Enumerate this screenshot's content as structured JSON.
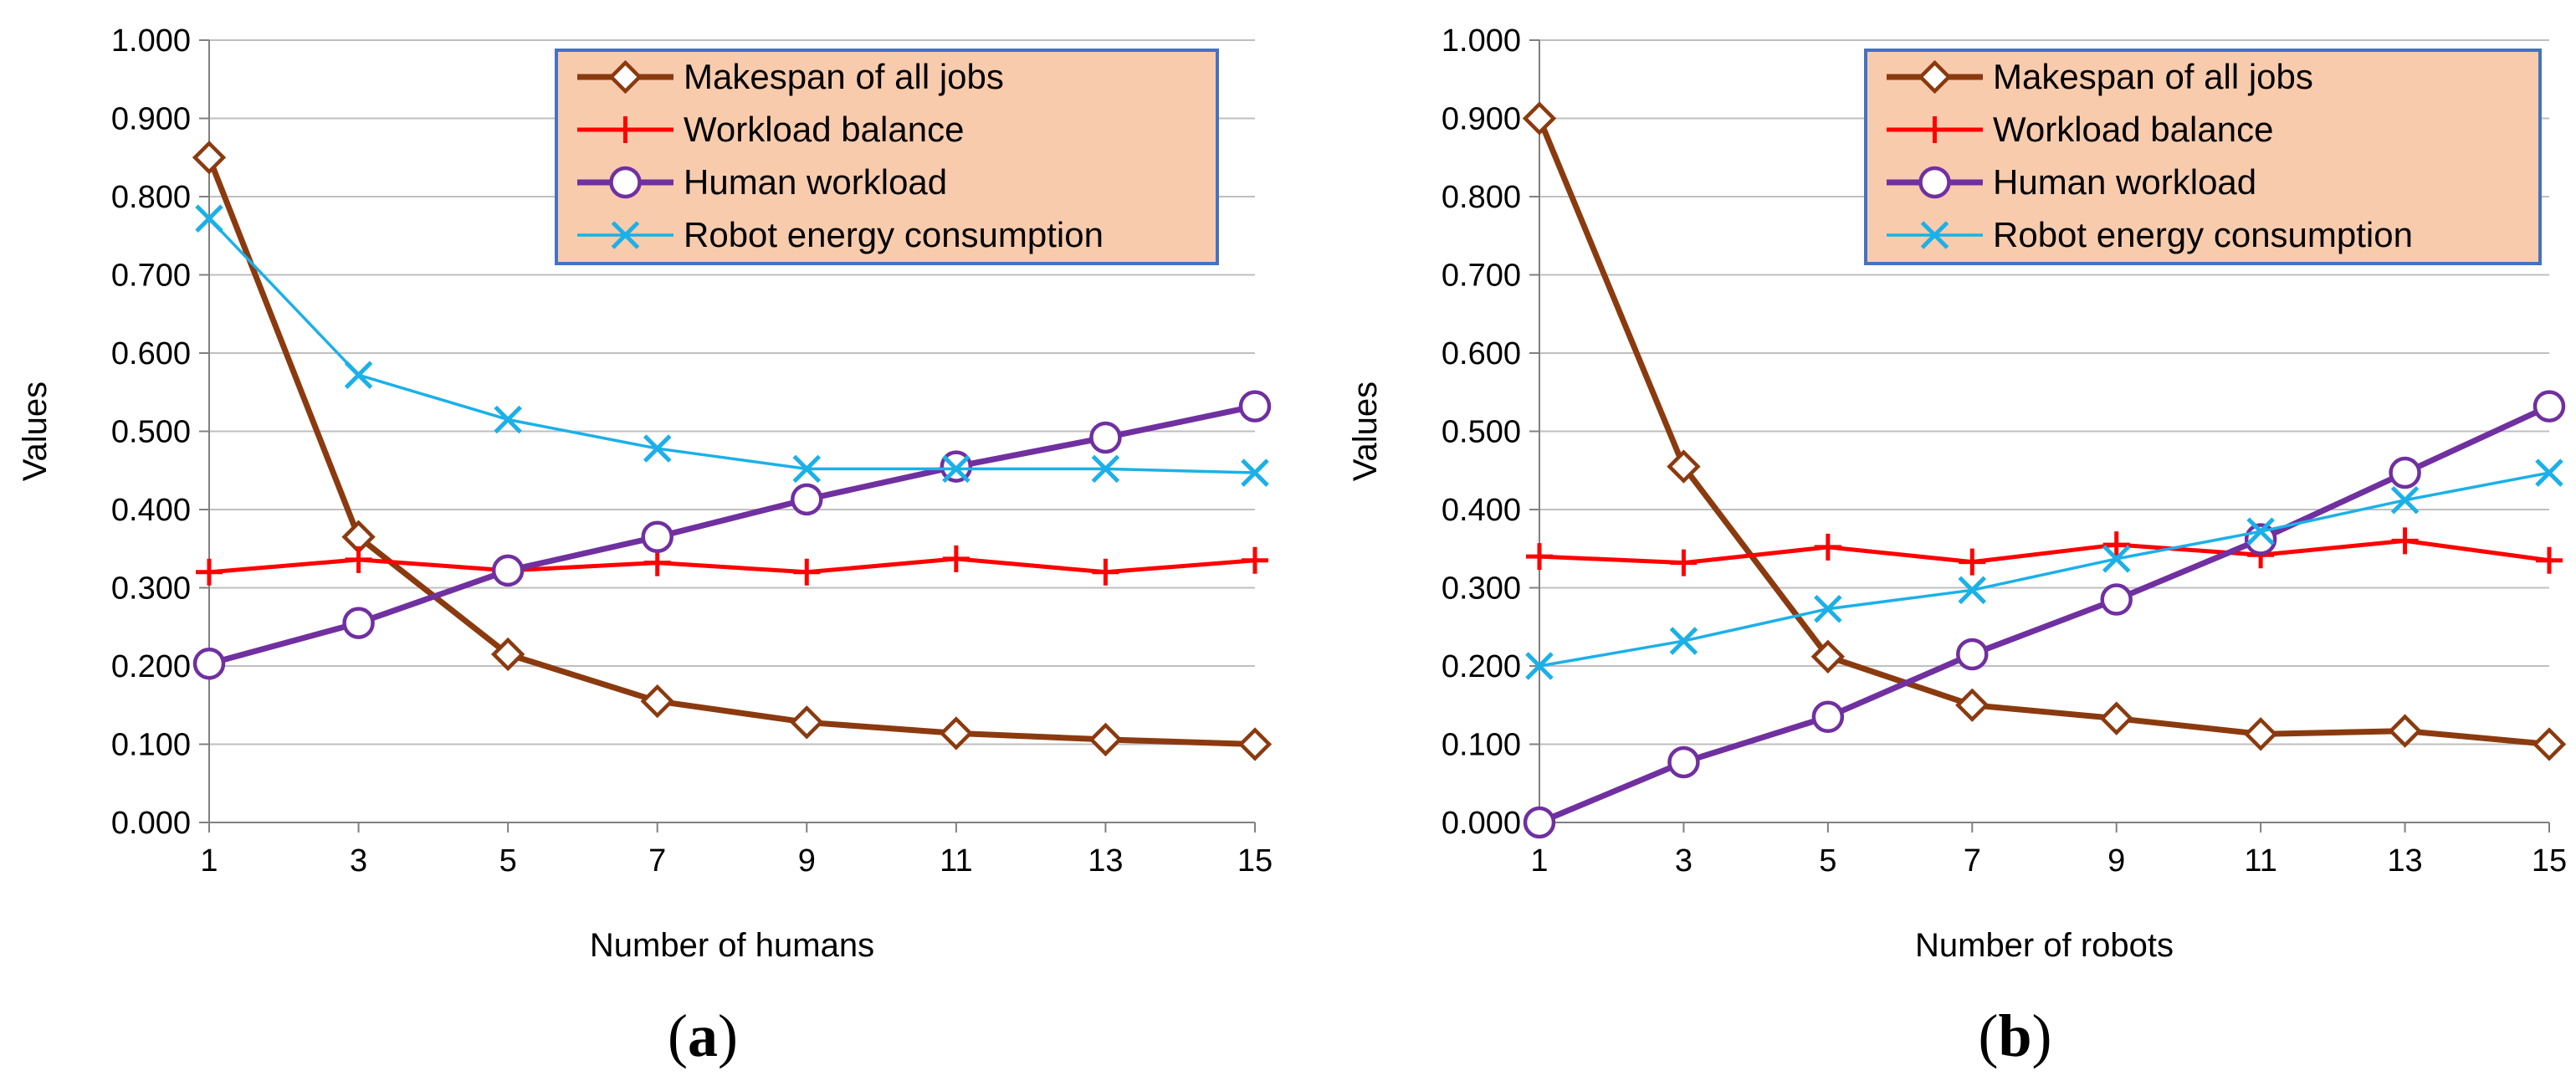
{
  "colors": {
    "makespan": "#8B3A0F",
    "workload_balance": "#FF0000",
    "human_workload": "#7030A0",
    "robot_energy": "#1CB0E8",
    "legend_bg": "#F8CBAD",
    "legend_border": "#4472C4",
    "gridline": "#BFBFBF"
  },
  "chart_data": [
    {
      "id": "a",
      "type": "line",
      "caption": "(a)",
      "caption_letter": "a",
      "xlabel": "Number of humans",
      "ylabel": "Values",
      "x": [
        1,
        3,
        5,
        7,
        9,
        11,
        13,
        15
      ],
      "x_tick_labels": [
        "1",
        "3",
        "5",
        "7",
        "9",
        "11",
        "13",
        "15"
      ],
      "ylim": [
        0,
        1
      ],
      "y_tick_labels": [
        "0.000",
        "0.100",
        "0.200",
        "0.300",
        "0.400",
        "0.500",
        "0.600",
        "0.700",
        "0.800",
        "0.900",
        "1.000"
      ],
      "grid": "horizontal",
      "legend_position": "top-right",
      "series": [
        {
          "key": "makespan",
          "name": "Makespan of all jobs",
          "marker": "diamond",
          "values": [
            0.85,
            0.365,
            0.215,
            0.155,
            0.128,
            0.114,
            0.106,
            0.1
          ]
        },
        {
          "key": "workload_balance",
          "name": "Workload balance",
          "marker": "plus",
          "values": [
            0.32,
            0.336,
            0.322,
            0.332,
            0.32,
            0.337,
            0.32,
            0.335
          ]
        },
        {
          "key": "human_workload",
          "name": "Human workload",
          "marker": "circle",
          "values": [
            0.203,
            0.255,
            0.322,
            0.365,
            0.413,
            0.455,
            0.492,
            0.532
          ]
        },
        {
          "key": "robot_energy",
          "name": "Robot energy consumption",
          "marker": "x",
          "values": [
            0.772,
            0.572,
            0.515,
            0.478,
            0.452,
            0.452,
            0.452,
            0.447
          ]
        }
      ]
    },
    {
      "id": "b",
      "type": "line",
      "caption": "(b)",
      "caption_letter": "b",
      "xlabel": "Number of robots",
      "ylabel": "Values",
      "x": [
        1,
        3,
        5,
        7,
        9,
        11,
        13,
        15
      ],
      "x_tick_labels": [
        "1",
        "3",
        "5",
        "7",
        "9",
        "11",
        "13",
        "15"
      ],
      "ylim": [
        0,
        1
      ],
      "y_tick_labels": [
        "0.000",
        "0.100",
        "0.200",
        "0.300",
        "0.400",
        "0.500",
        "0.600",
        "0.700",
        "0.800",
        "0.900",
        "1.000"
      ],
      "grid": "horizontal",
      "legend_position": "top-right",
      "series": [
        {
          "key": "makespan",
          "name": "Makespan of all jobs",
          "marker": "diamond",
          "values": [
            0.9,
            0.455,
            0.212,
            0.15,
            0.133,
            0.113,
            0.117,
            0.1
          ]
        },
        {
          "key": "workload_balance",
          "name": "Workload balance",
          "marker": "plus",
          "values": [
            0.34,
            0.332,
            0.352,
            0.333,
            0.355,
            0.342,
            0.36,
            0.335
          ]
        },
        {
          "key": "human_workload",
          "name": "Human workload",
          "marker": "circle",
          "values": [
            0.0,
            0.077,
            0.135,
            0.215,
            0.285,
            0.362,
            0.447,
            0.532
          ]
        },
        {
          "key": "robot_energy",
          "name": "Robot energy consumption",
          "marker": "x",
          "values": [
            0.2,
            0.232,
            0.273,
            0.297,
            0.337,
            0.372,
            0.412,
            0.447
          ]
        }
      ]
    }
  ]
}
